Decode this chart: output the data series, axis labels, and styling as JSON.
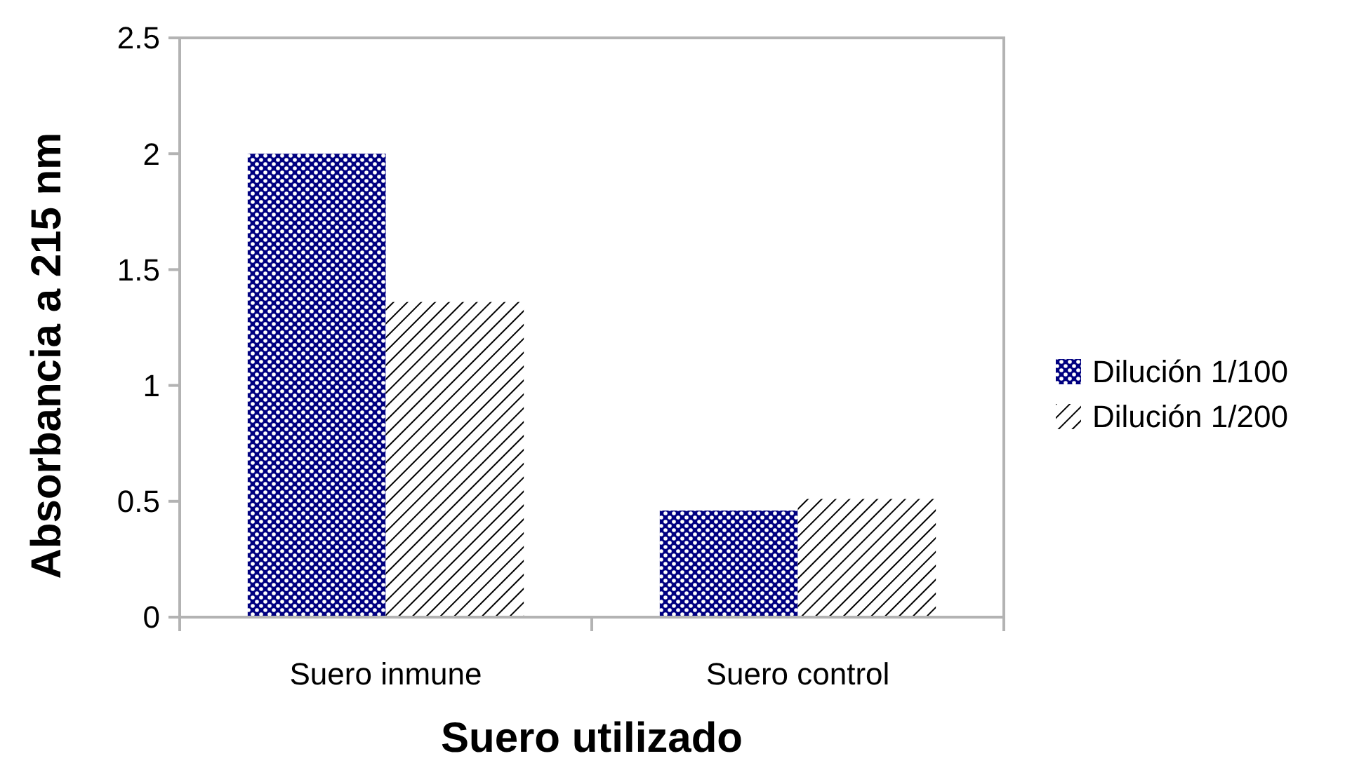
{
  "chart_data": {
    "type": "bar",
    "xlabel": "Suero utilizado",
    "ylabel": "Absorbancia a 215 nm",
    "categories": [
      "Suero inmune",
      "Suero control"
    ],
    "series": [
      {
        "name": "Dilución 1/100",
        "color": "#000080",
        "values": [
          2.0,
          0.46
        ]
      },
      {
        "name": "Dilución 1/200",
        "color": "#000000",
        "values": [
          1.36,
          0.51
        ]
      }
    ],
    "ylim": [
      0,
      2.5
    ],
    "yticks": [
      0,
      0.5,
      1,
      1.5,
      2,
      2.5
    ],
    "grid": false,
    "legend": "right"
  }
}
